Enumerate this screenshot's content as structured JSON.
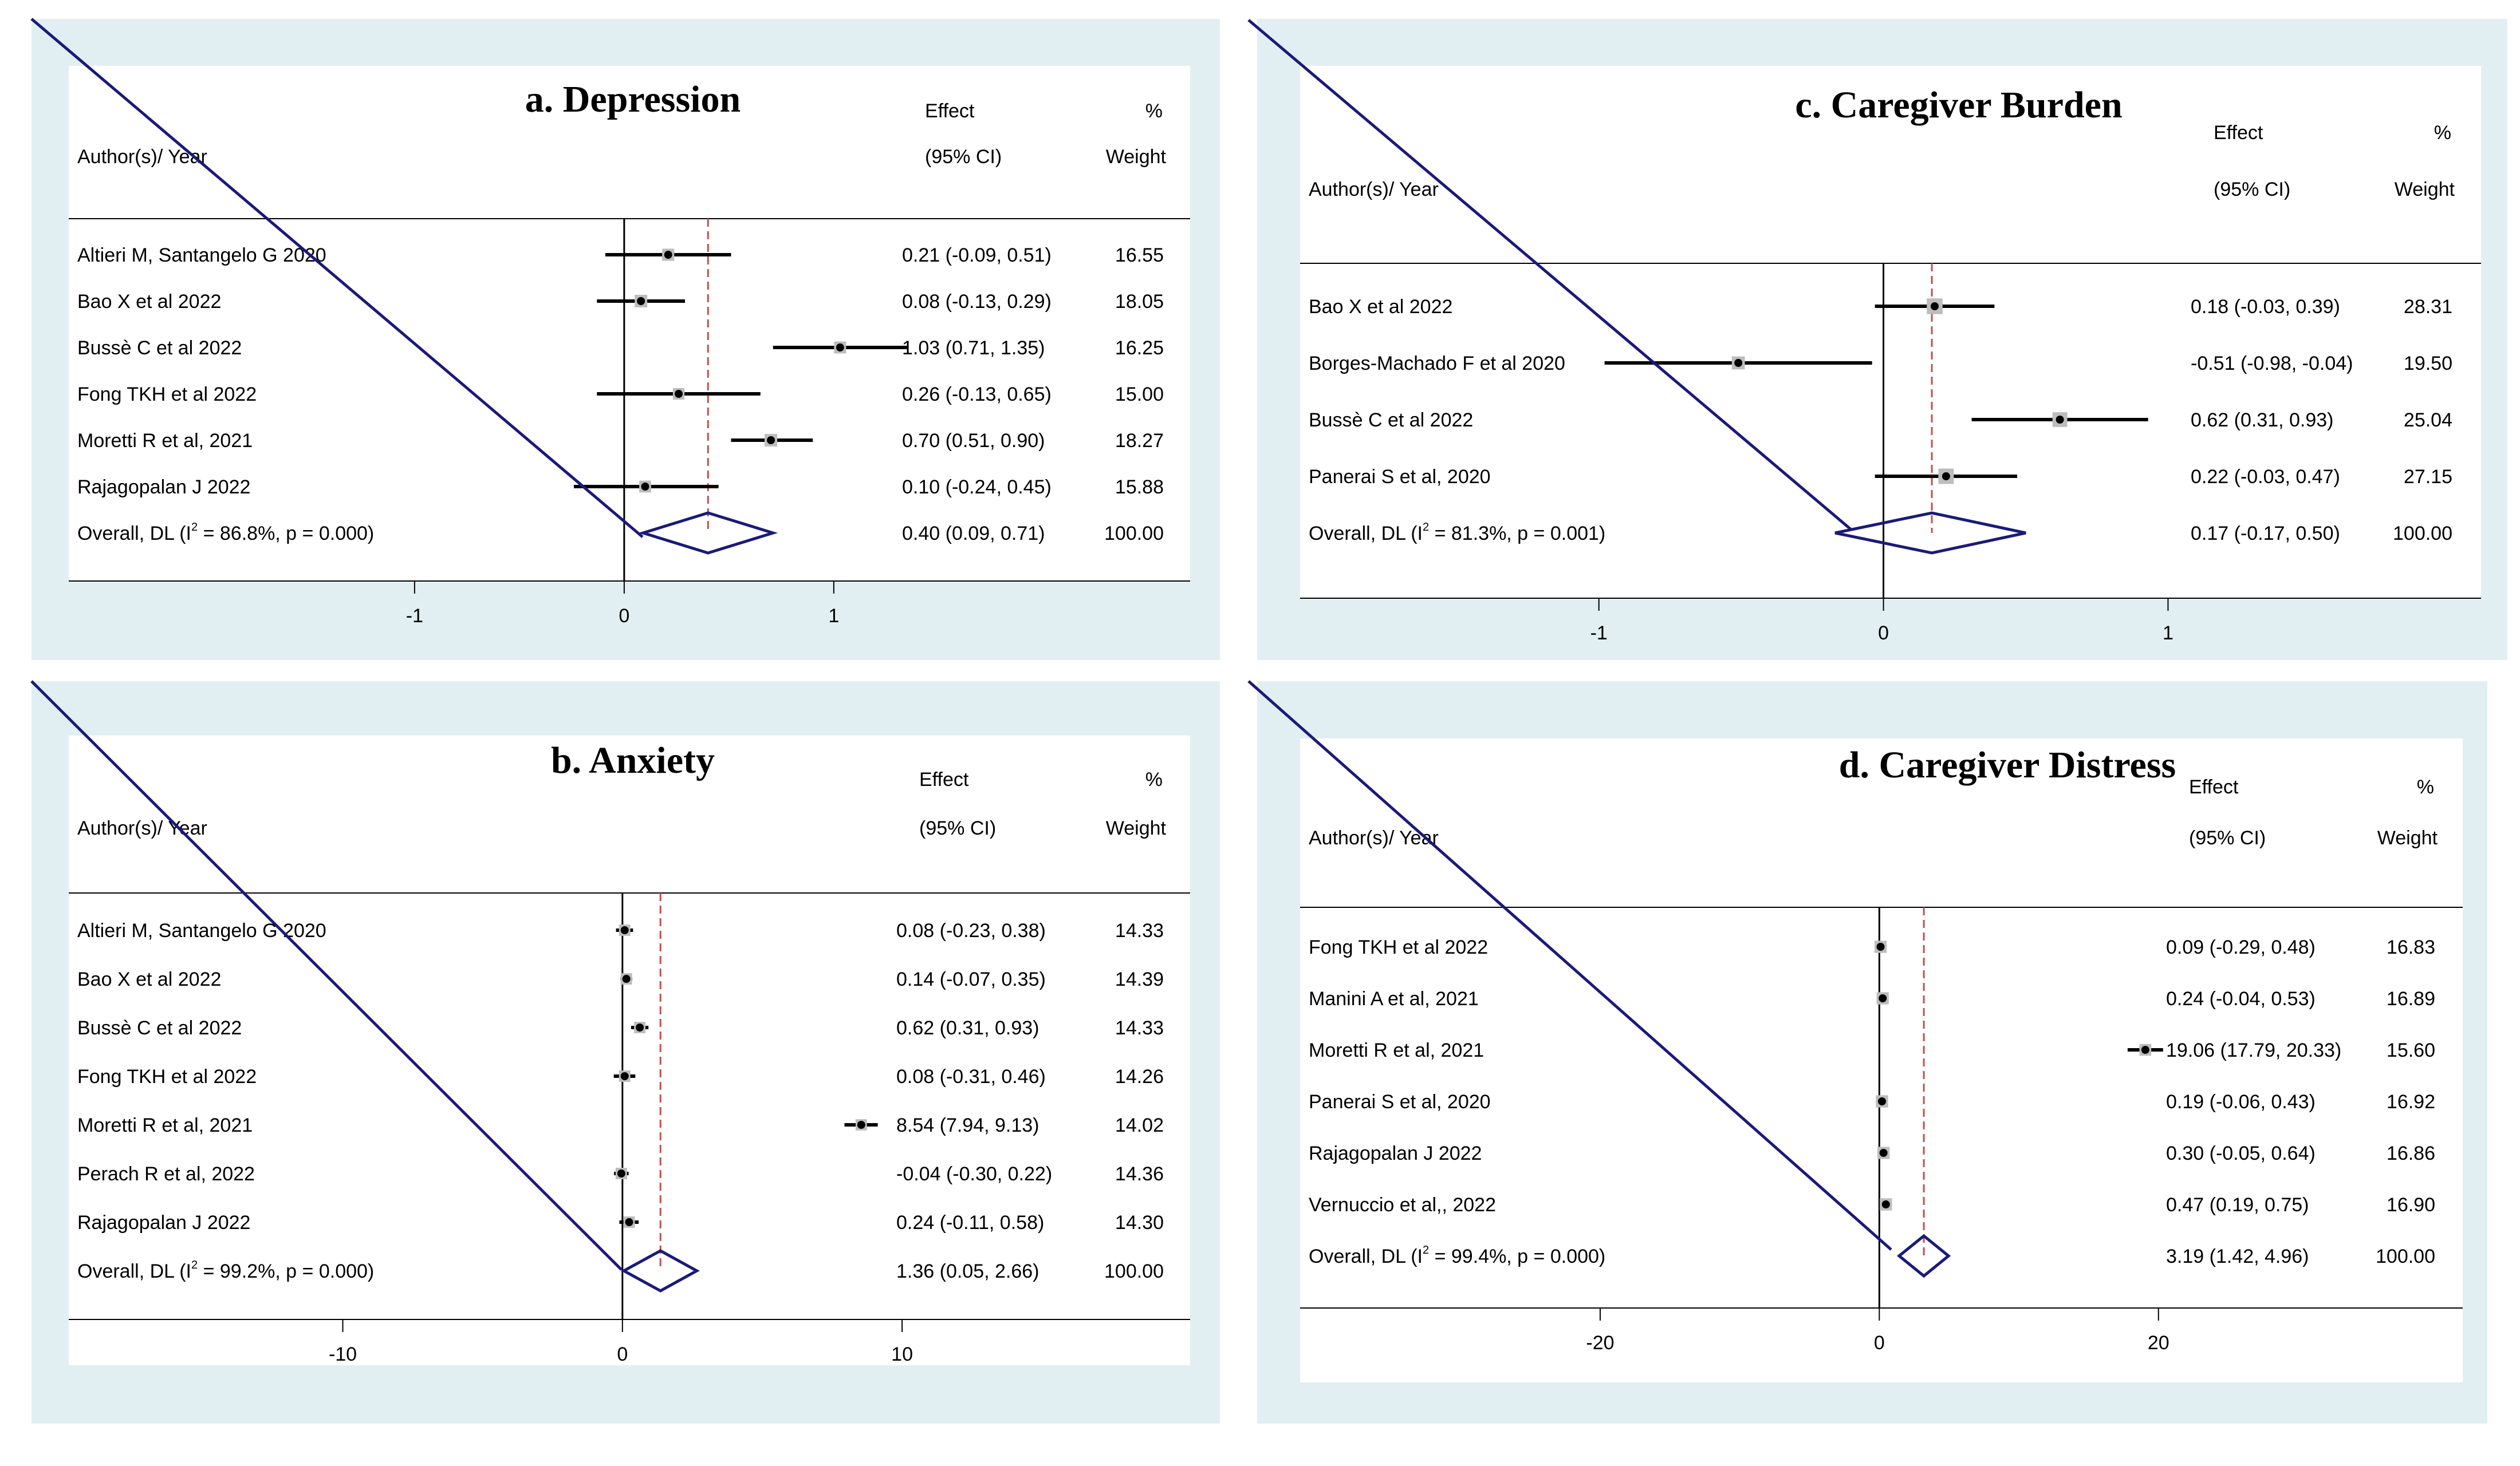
{
  "colors": {
    "panel_background": "#e2eff2",
    "plot_background": "#ffffff",
    "ci_line": "#000000",
    "overall_diamond": "#1a1a7a",
    "overall_reference_line": "#c0504d",
    "weight_box": "#bdbdbd"
  },
  "headers": {
    "author": "Author(s)/ Year",
    "effect": "Effect",
    "ci": "(95% CI)",
    "pct": "%",
    "weight": "Weight"
  },
  "chart_data": [
    {
      "type": "forest",
      "title": "a. Depression",
      "xticks": [
        -1,
        0,
        1
      ],
      "xlim": [
        -2.65,
        2.7
      ],
      "studies": [
        {
          "label": "Altieri M, Santangelo G 2020",
          "effect": 0.21,
          "lo": -0.09,
          "hi": 0.51,
          "effect_text": "0.21 (-0.09, 0.51)",
          "weight": 16.55,
          "weight_text": "16.55"
        },
        {
          "label": "Bao X et al 2022",
          "effect": 0.08,
          "lo": -0.13,
          "hi": 0.29,
          "effect_text": "0.08 (-0.13, 0.29)",
          "weight": 18.05,
          "weight_text": "18.05"
        },
        {
          "label": "Bussè C et al 2022",
          "effect": 1.03,
          "lo": 0.71,
          "hi": 1.35,
          "effect_text": "1.03 (0.71, 1.35)",
          "weight": 16.25,
          "weight_text": "16.25"
        },
        {
          "label": "Fong TKH et al 2022",
          "effect": 0.26,
          "lo": -0.13,
          "hi": 0.65,
          "effect_text": "0.26 (-0.13, 0.65)",
          "weight": 15.0,
          "weight_text": "15.00"
        },
        {
          "label": "Moretti R et al, 2021",
          "effect": 0.7,
          "lo": 0.51,
          "hi": 0.9,
          "effect_text": "0.70 (0.51, 0.90)",
          "weight": 18.27,
          "weight_text": "18.27"
        },
        {
          "label": "Rajagopalan J 2022",
          "effect": 0.1,
          "lo": -0.24,
          "hi": 0.45,
          "effect_text": "0.10 (-0.24, 0.45)",
          "weight": 15.88,
          "weight_text": "15.88"
        }
      ],
      "overall": {
        "label_prefix": "Overall, DL (I",
        "label_suffix": " = 86.8%, p = 0.000)",
        "effect": 0.4,
        "lo": 0.09,
        "hi": 0.71,
        "effect_text": "0.40 (0.09, 0.71)",
        "weight_text": "100.00"
      }
    },
    {
      "type": "forest",
      "title": "b. Anxiety",
      "xticks": [
        -10,
        0,
        10
      ],
      "xlim": [
        -19.8,
        20.3
      ],
      "studies": [
        {
          "label": "Altieri M, Santangelo G 2020",
          "effect": 0.08,
          "lo": -0.23,
          "hi": 0.38,
          "effect_text": "0.08 (-0.23, 0.38)",
          "weight": 14.33,
          "weight_text": "14.33"
        },
        {
          "label": "Bao X et al 2022",
          "effect": 0.14,
          "lo": -0.07,
          "hi": 0.35,
          "effect_text": "0.14 (-0.07, 0.35)",
          "weight": 14.39,
          "weight_text": "14.39"
        },
        {
          "label": "Bussè C et al 2022",
          "effect": 0.62,
          "lo": 0.31,
          "hi": 0.93,
          "effect_text": "0.62 (0.31, 0.93)",
          "weight": 14.33,
          "weight_text": "14.33"
        },
        {
          "label": "Fong TKH et al 2022",
          "effect": 0.08,
          "lo": -0.31,
          "hi": 0.46,
          "effect_text": "0.08 (-0.31, 0.46)",
          "weight": 14.26,
          "weight_text": "14.26"
        },
        {
          "label": "Moretti R et al, 2021",
          "effect": 8.54,
          "lo": 7.94,
          "hi": 9.13,
          "effect_text": "8.54 (7.94, 9.13)",
          "weight": 14.02,
          "weight_text": "14.02"
        },
        {
          "label": "Perach R et al, 2022",
          "effect": -0.04,
          "lo": -0.3,
          "hi": 0.22,
          "effect_text": "-0.04 (-0.30, 0.22)",
          "weight": 14.36,
          "weight_text": "14.36"
        },
        {
          "label": "Rajagopalan J 2022",
          "effect": 0.24,
          "lo": -0.11,
          "hi": 0.58,
          "effect_text": "0.24 (-0.11, 0.58)",
          "weight": 14.3,
          "weight_text": "14.30"
        }
      ],
      "overall": {
        "label_prefix": "Overall, DL (I",
        "label_suffix": " = 99.2%, p = 0.000)",
        "effect": 1.36,
        "lo": 0.05,
        "hi": 2.66,
        "effect_text": "1.36 (0.05, 2.66)",
        "weight_text": "100.00"
      }
    },
    {
      "type": "forest",
      "title": "c. Caregiver Burden",
      "xticks": [
        -1,
        0,
        1
      ],
      "xlim": [
        -2.05,
        2.1
      ],
      "studies": [
        {
          "label": "Bao X et al 2022",
          "effect": 0.18,
          "lo": -0.03,
          "hi": 0.39,
          "effect_text": "0.18 (-0.03, 0.39)",
          "weight": 28.31,
          "weight_text": "28.31"
        },
        {
          "label": "Borges-Machado F et al 2020",
          "effect": -0.51,
          "lo": -0.98,
          "hi": -0.04,
          "effect_text": "-0.51 (-0.98, -0.04)",
          "weight": 19.5,
          "weight_text": "19.50"
        },
        {
          "label": "Bussè C et al 2022",
          "effect": 0.62,
          "lo": 0.31,
          "hi": 0.93,
          "effect_text": "0.62 (0.31, 0.93)",
          "weight": 25.04,
          "weight_text": "25.04"
        },
        {
          "label": "Panerai S et al, 2020",
          "effect": 0.22,
          "lo": -0.03,
          "hi": 0.47,
          "effect_text": "0.22 (-0.03, 0.47)",
          "weight": 27.15,
          "weight_text": "27.15"
        }
      ],
      "overall": {
        "label_prefix": "Overall, DL (I",
        "label_suffix": " = 81.3%, p = 0.001)",
        "effect": 0.17,
        "lo": -0.17,
        "hi": 0.5,
        "effect_text": "0.17 (-0.17, 0.50)",
        "weight_text": "100.00"
      }
    },
    {
      "type": "forest",
      "title": "d. Caregiver Distress",
      "xticks": [
        -20,
        0,
        20
      ],
      "xlim": [
        -41.5,
        41.8
      ],
      "studies": [
        {
          "label": "Fong TKH et al 2022",
          "effect": 0.09,
          "lo": -0.29,
          "hi": 0.48,
          "effect_text": "0.09 (-0.29, 0.48)",
          "weight": 16.83,
          "weight_text": "16.83"
        },
        {
          "label": "Manini A et al, 2021",
          "effect": 0.24,
          "lo": -0.04,
          "hi": 0.53,
          "effect_text": "0.24 (-0.04, 0.53)",
          "weight": 16.89,
          "weight_text": "16.89"
        },
        {
          "label": "Moretti R et al, 2021",
          "effect": 19.06,
          "lo": 17.79,
          "hi": 20.33,
          "effect_text": "19.06 (17.79, 20.33)",
          "weight": 15.6,
          "weight_text": "15.60"
        },
        {
          "label": "Panerai S et al, 2020",
          "effect": 0.19,
          "lo": -0.06,
          "hi": 0.43,
          "effect_text": "0.19 (-0.06, 0.43)",
          "weight": 16.92,
          "weight_text": "16.92"
        },
        {
          "label": "Rajagopalan J 2022",
          "effect": 0.3,
          "lo": -0.05,
          "hi": 0.64,
          "effect_text": "0.30 (-0.05, 0.64)",
          "weight": 16.86,
          "weight_text": "16.86"
        },
        {
          "label": "Vernuccio et al,, 2022",
          "effect": 0.47,
          "lo": 0.19,
          "hi": 0.75,
          "effect_text": "0.47 (0.19, 0.75)",
          "weight": 16.9,
          "weight_text": "16.90"
        }
      ],
      "overall": {
        "label_prefix": "Overall, DL (I",
        "label_suffix": " = 99.4%, p = 0.000)",
        "effect": 3.19,
        "lo": 1.42,
        "hi": 4.96,
        "effect_text": "3.19 (1.42, 4.96)",
        "weight_text": "100.00"
      }
    }
  ]
}
